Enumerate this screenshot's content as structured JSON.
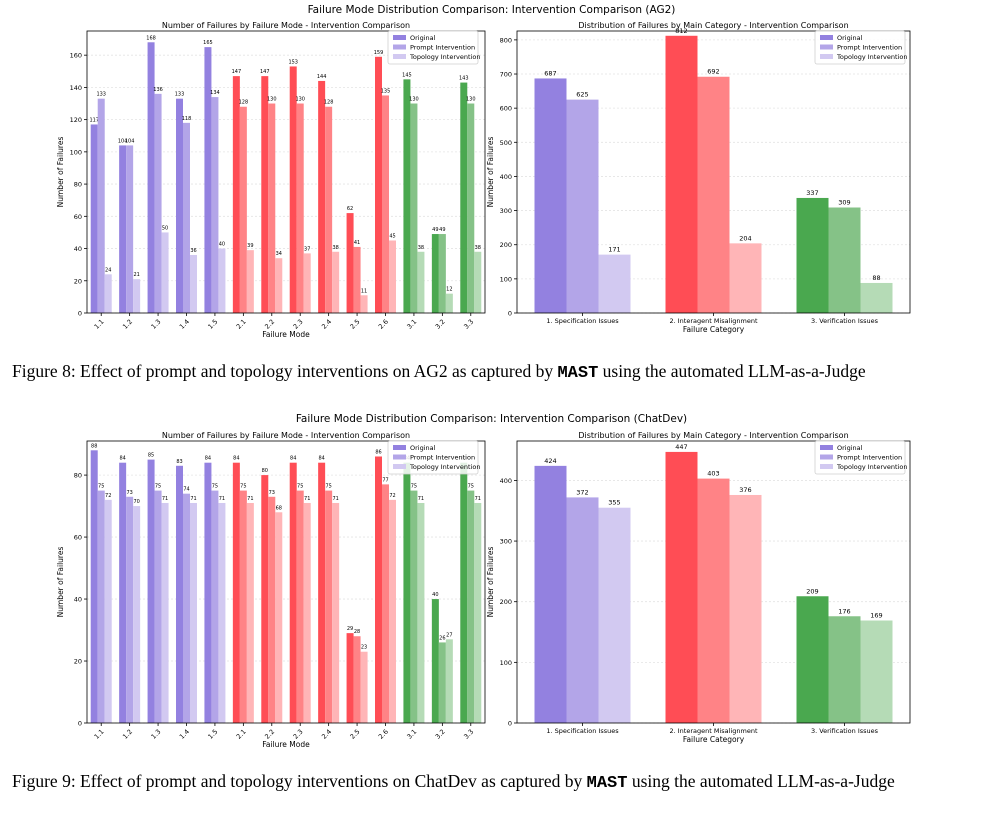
{
  "colors": {
    "spec": [
      "#9381e0",
      "#b3a5e8",
      "#d2c9f1"
    ],
    "inter": [
      "#ff4d55",
      "#ff8386",
      "#ffb5b7"
    ],
    "verif": [
      "#4aa84f",
      "#85c287",
      "#b5dbb6"
    ],
    "legend": [
      "#9381e0",
      "#b3a5e8",
      "#d2c9f1"
    ],
    "grid": "#e4e4e4"
  },
  "figures": [
    {
      "suptitle": "Failure Mode Distribution Comparison: Intervention Comparison (AG2)",
      "caption_prefix": "Figure 8: Effect of prompt and topology interventions on AG2 as captured by ",
      "caption_mast": "MAST",
      "caption_suffix": " using the automated LLM-as-a-Judge"
    },
    {
      "suptitle": "Failure Mode Distribution Comparison: Intervention Comparison (ChatDev)",
      "caption_prefix": "Figure 9: Effect of prompt and topology interventions on ChatDev as captured by ",
      "caption_mast": "MAST",
      "caption_suffix": " using the automated LLM-as-a-Judge"
    }
  ],
  "chart_data": [
    {
      "type": "bar",
      "title": "Number of Failures by Failure Mode - Intervention Comparison",
      "xlabel": "Failure Mode",
      "ylabel": "Number of Failures",
      "ylim": [
        0,
        175
      ],
      "yticks": [
        0,
        20,
        40,
        60,
        80,
        100,
        120,
        140,
        160
      ],
      "grid": true,
      "legend_position": "top-right",
      "categories": [
        "1.1",
        "1.2",
        "1.3",
        "1.4",
        "1.5",
        "2.1",
        "2.2",
        "2.3",
        "2.4",
        "2.5",
        "2.6",
        "3.1",
        "3.2",
        "3.3"
      ],
      "groups": [
        "spec",
        "spec",
        "spec",
        "spec",
        "spec",
        "inter",
        "inter",
        "inter",
        "inter",
        "inter",
        "inter",
        "verif",
        "verif",
        "verif"
      ],
      "series": [
        {
          "name": "Original",
          "values": [
            117,
            104,
            168,
            133,
            165,
            147,
            147,
            153,
            144,
            62,
            159,
            145,
            49,
            143
          ]
        },
        {
          "name": "Prompt Intervention",
          "values": [
            133,
            104,
            136,
            118,
            134,
            128,
            130,
            130,
            128,
            41,
            135,
            130,
            49,
            130
          ]
        },
        {
          "name": "Topology Intervention",
          "values": [
            24,
            21,
            50,
            36,
            40,
            39,
            34,
            37,
            38,
            11,
            45,
            38,
            12,
            38
          ]
        }
      ]
    },
    {
      "type": "bar",
      "title": "Distribution of Failures by Main Category - Intervention Comparison",
      "xlabel": "Failure Category",
      "ylabel": "Number of Failures",
      "ylim": [
        0,
        826
      ],
      "yticks": [
        0,
        100,
        200,
        300,
        400,
        500,
        600,
        700,
        800
      ],
      "grid": true,
      "legend_position": "top-right",
      "categories": [
        "1. Specification Issues",
        "2. Interagent Misalignment",
        "3. Verification Issues"
      ],
      "groups": [
        "spec",
        "inter",
        "verif"
      ],
      "series": [
        {
          "name": "Original",
          "values": [
            687,
            812,
            337
          ]
        },
        {
          "name": "Prompt Intervention",
          "values": [
            625,
            692,
            309
          ]
        },
        {
          "name": "Topology Intervention",
          "values": [
            171,
            204,
            88
          ]
        }
      ]
    },
    {
      "type": "bar",
      "title": "Number of Failures by Failure Mode - Intervention Comparison",
      "xlabel": "Failure Mode",
      "ylabel": "Number of Failures",
      "ylim": [
        0,
        91
      ],
      "yticks": [
        0,
        20,
        40,
        60,
        80
      ],
      "grid": true,
      "legend_position": "top-right",
      "categories": [
        "1.1",
        "1.2",
        "1.3",
        "1.4",
        "1.5",
        "2.1",
        "2.2",
        "2.3",
        "2.4",
        "2.5",
        "2.6",
        "3.1",
        "3.2",
        "3.3"
      ],
      "groups": [
        "spec",
        "spec",
        "spec",
        "spec",
        "spec",
        "inter",
        "inter",
        "inter",
        "inter",
        "inter",
        "inter",
        "verif",
        "verif",
        "verif"
      ],
      "series": [
        {
          "name": "Original",
          "values": [
            88,
            84,
            85,
            83,
            84,
            84,
            80,
            84,
            84,
            29,
            86,
            84,
            40,
            84
          ]
        },
        {
          "name": "Prompt Intervention",
          "values": [
            75,
            73,
            75,
            74,
            75,
            75,
            73,
            75,
            75,
            28,
            77,
            75,
            26,
            75
          ]
        },
        {
          "name": "Topology Intervention",
          "values": [
            72,
            70,
            71,
            71,
            71,
            71,
            68,
            71,
            71,
            23,
            72,
            71,
            27,
            71
          ]
        }
      ]
    },
    {
      "type": "bar",
      "title": "Distribution of Failures by Main Category - Intervention Comparison",
      "xlabel": "Failure Category",
      "ylabel": "Number of Failures",
      "ylim": [
        0,
        465
      ],
      "yticks": [
        0,
        100,
        200,
        300,
        400
      ],
      "grid": true,
      "legend_position": "top-right",
      "categories": [
        "1. Specification Issues",
        "2. Interagent Misalignment",
        "3. Verification Issues"
      ],
      "groups": [
        "spec",
        "inter",
        "verif"
      ],
      "series": [
        {
          "name": "Original",
          "values": [
            424,
            447,
            209
          ]
        },
        {
          "name": "Prompt Intervention",
          "values": [
            372,
            403,
            176
          ]
        },
        {
          "name": "Topology Intervention",
          "values": [
            355,
            376,
            169
          ]
        }
      ]
    }
  ]
}
